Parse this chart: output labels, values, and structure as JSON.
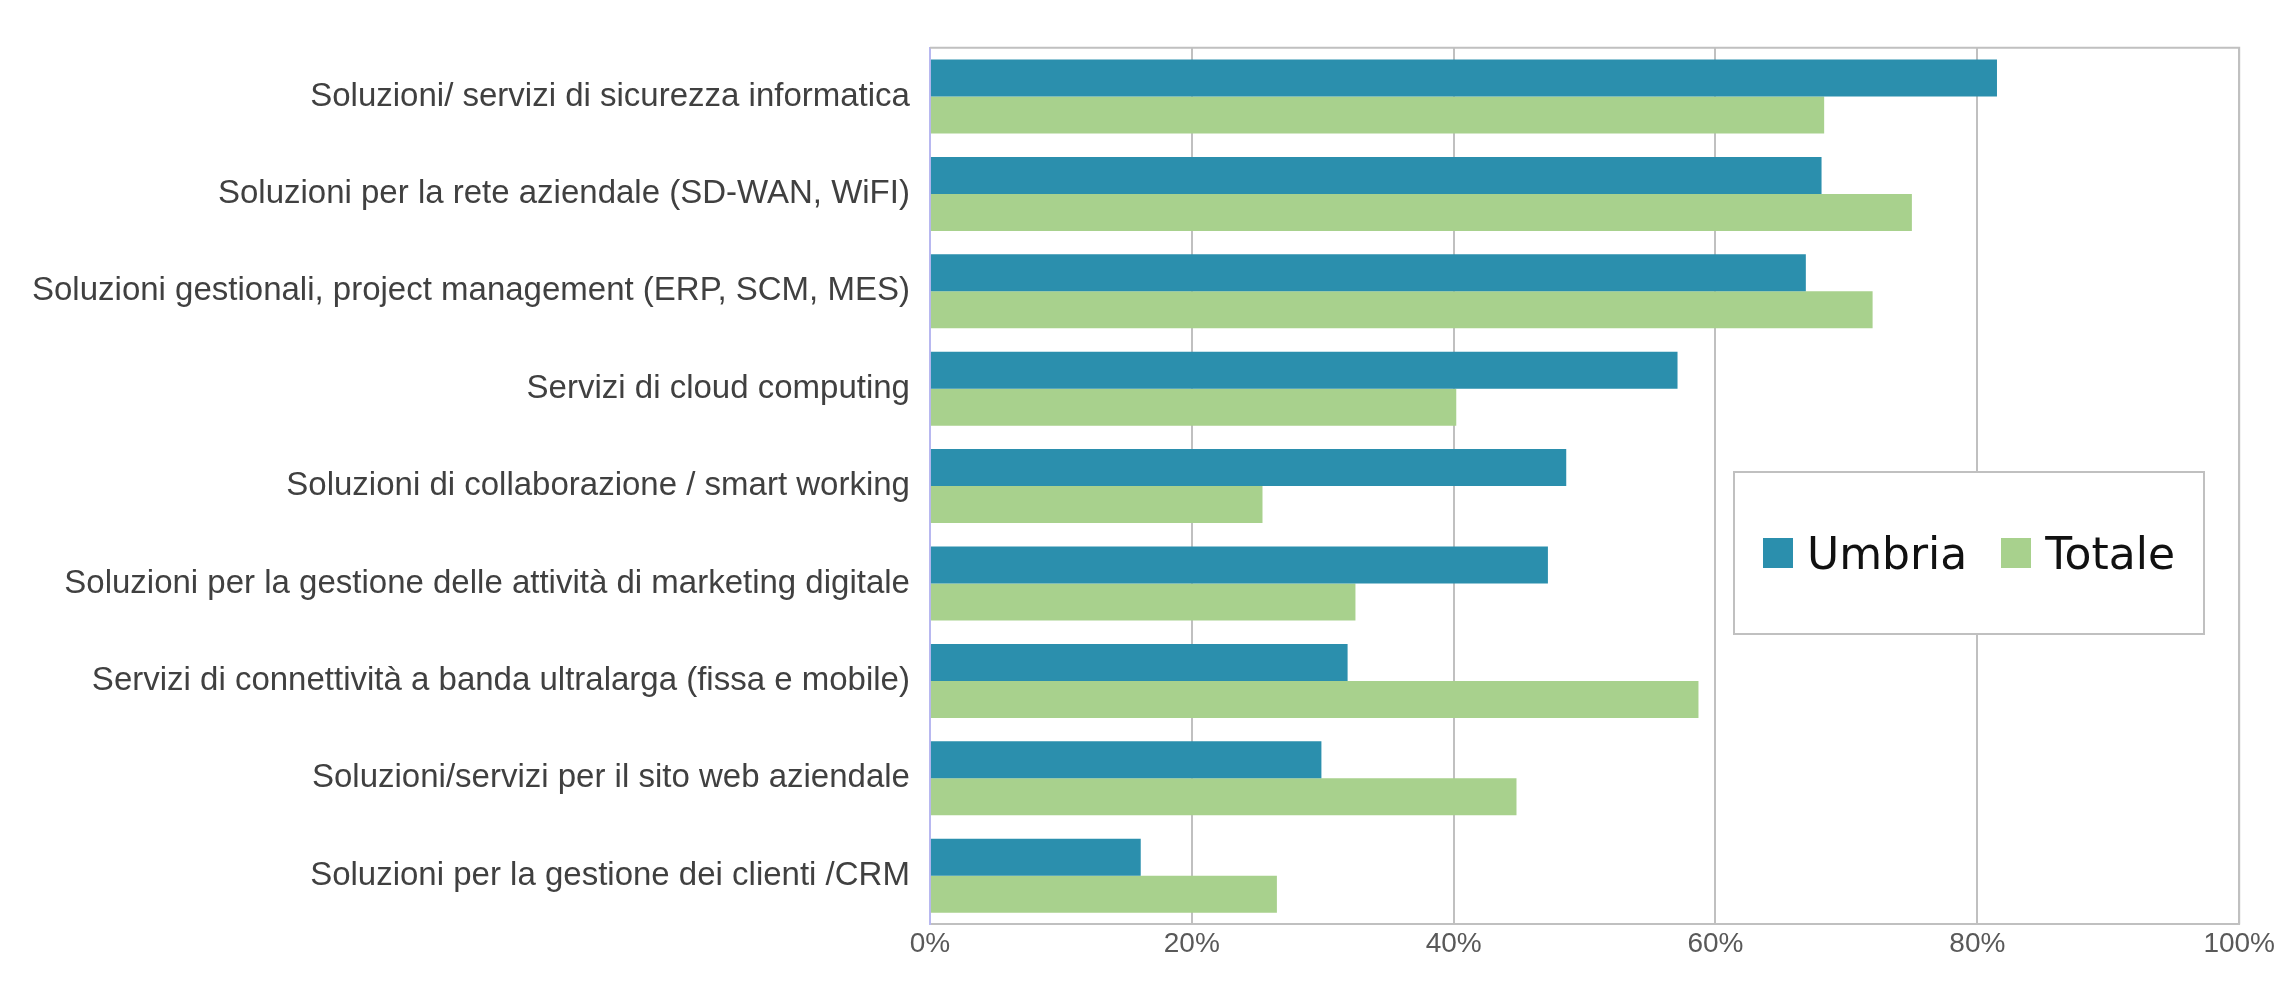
{
  "chart_data": {
    "type": "bar",
    "orientation": "horizontal",
    "categories": [
      "Soluzioni/ servizi di sicurezza informatica",
      "Soluzioni per la rete aziendale (SD-WAN, WiFI)",
      "Soluzioni gestionali, project management (ERP, SCM, MES)",
      "Servizi di cloud computing",
      "Soluzioni di collaborazione / smart working",
      "Soluzioni per la gestione delle attività di marketing digitale",
      "Servizi di connettività a banda ultralarga (fissa e mobile)",
      "Soluzioni/servizi per il sito web aziendale",
      "Soluzioni per la gestione dei clienti /CRM"
    ],
    "series": [
      {
        "name": "Umbria",
        "color": "#2b8fad",
        "values": [
          81.5,
          68.1,
          66.9,
          57.1,
          48.6,
          47.2,
          31.9,
          29.9,
          16.1
        ]
      },
      {
        "name": "Totale",
        "color": "#a8d18d",
        "values": [
          68.3,
          75.0,
          72.0,
          40.2,
          25.4,
          32.5,
          58.7,
          44.8,
          26.5
        ]
      }
    ],
    "xlim": [
      0,
      100
    ],
    "xticks": [
      {
        "value": 0,
        "label": "0%"
      },
      {
        "value": 20,
        "label": "20%"
      },
      {
        "value": 40,
        "label": "40%"
      },
      {
        "value": 60,
        "label": "60%"
      },
      {
        "value": 80,
        "label": "80%"
      },
      {
        "value": 100,
        "label": "100%"
      }
    ],
    "grid": "x",
    "legend": "right"
  }
}
